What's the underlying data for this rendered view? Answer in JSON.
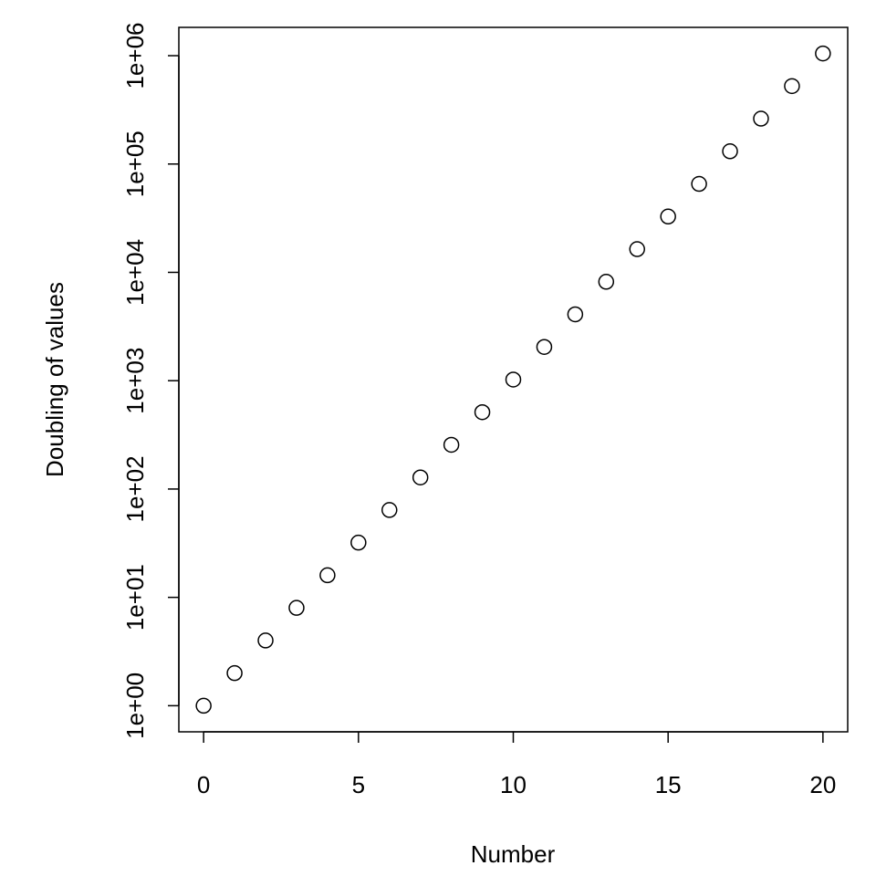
{
  "chart_data": {
    "type": "scatter",
    "xlabel": "Number",
    "ylabel": "Doubling of values",
    "x": [
      0,
      1,
      2,
      3,
      4,
      5,
      6,
      7,
      8,
      9,
      10,
      11,
      12,
      13,
      14,
      15,
      16,
      17,
      18,
      19,
      20
    ],
    "values": [
      1,
      2,
      4,
      8,
      16,
      32,
      64,
      128,
      256,
      512,
      1024,
      2048,
      4096,
      8192,
      16384,
      32768,
      65536,
      131072,
      262144,
      524288,
      1048576
    ],
    "color": "#000000",
    "log_y": true,
    "xlim": [
      -0.8,
      20.8
    ],
    "xticks": [
      0,
      5,
      10,
      15,
      20
    ],
    "ylim": [
      0.574,
      1825000
    ],
    "yticks": [
      {
        "value": 1,
        "label": "1e+00"
      },
      {
        "value": 10,
        "label": "1e+01"
      },
      {
        "value": 100,
        "label": "1e+02"
      },
      {
        "value": 1000,
        "label": "1e+03"
      },
      {
        "value": 10000,
        "label": "1e+04"
      },
      {
        "value": 100000,
        "label": "1e+05"
      },
      {
        "value": 1000000,
        "label": "1e+06"
      }
    ]
  }
}
